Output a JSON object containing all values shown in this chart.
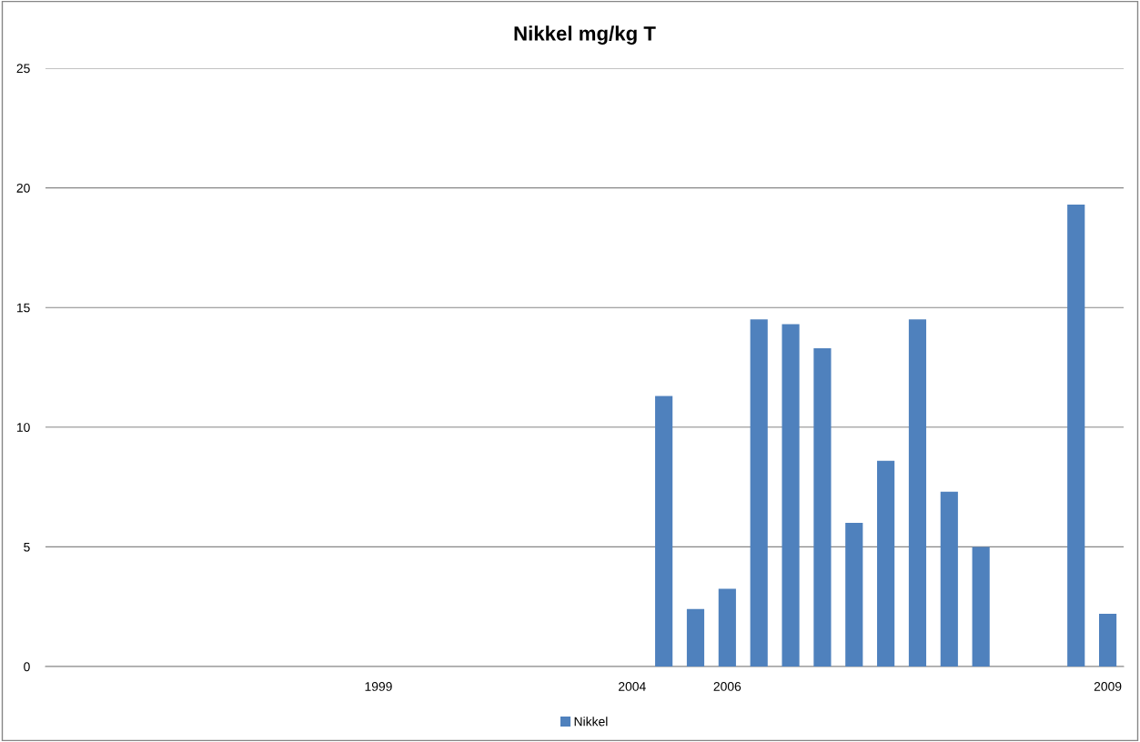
{
  "chart_data": {
    "type": "bar",
    "title": "Nikkel mg/kg T",
    "categories": [
      null,
      null,
      null,
      null,
      null,
      null,
      null,
      null,
      null,
      null,
      "1999",
      null,
      null,
      null,
      null,
      null,
      null,
      null,
      "2004",
      null,
      null,
      "2006",
      null,
      null,
      null,
      null,
      null,
      null,
      null,
      null,
      null,
      null,
      null,
      "2009"
    ],
    "series": [
      {
        "name": "Nikkel",
        "color": "#4f81bd",
        "values": [
          null,
          null,
          null,
          null,
          null,
          null,
          null,
          null,
          null,
          null,
          null,
          null,
          null,
          null,
          null,
          null,
          null,
          null,
          null,
          11.3,
          2.4,
          3.25,
          14.5,
          14.3,
          13.3,
          6.0,
          8.6,
          14.5,
          7.3,
          5.0,
          null,
          null,
          19.3,
          2.2
        ]
      }
    ],
    "ylim": [
      0,
      25
    ],
    "yticks": [
      0,
      5,
      10,
      15,
      20,
      25
    ],
    "grid": "y",
    "legend": "bottom"
  }
}
